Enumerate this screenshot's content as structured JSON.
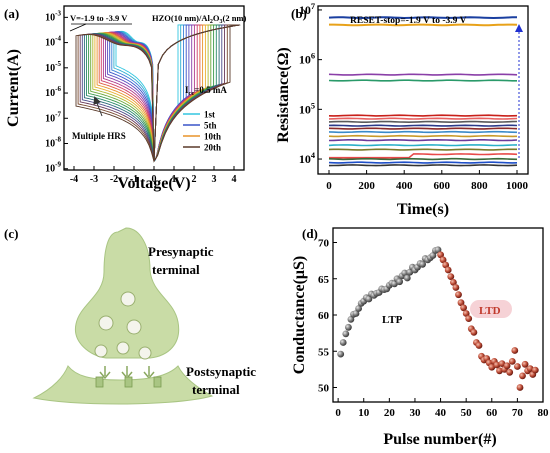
{
  "chart_data": [
    {
      "panel": "(a)",
      "type": "line",
      "xlabel": "Voltage(V)",
      "ylabel": "Current(A)",
      "xlim": [
        -4.5,
        4.5
      ],
      "ylim": [
        1e-09,
        0.001
      ],
      "y_scale": "log",
      "x_ticks": [
        "-4",
        "-3",
        "-2",
        "-1",
        "0",
        "1",
        "2",
        "3",
        "4"
      ],
      "y_ticks": [
        "10-9",
        "10-8",
        "10-7",
        "10-6",
        "10-5",
        "10-4",
        "10-3"
      ],
      "annotations": [
        "V=-1.9 to -3.9 V",
        "HZO(10 nm)/Al2O3(2 nm)",
        "Icc=0.5 mA",
        "Multiple HRS"
      ],
      "compliance_current": 0.0005,
      "reset_stop_voltages": [
        -1.9,
        -3.9
      ],
      "legend": [
        {
          "name": "1st",
          "color": "#33c6e0"
        },
        {
          "name": "5th",
          "color": "#3a55c8"
        },
        {
          "name": "10th",
          "color": "#e8932a"
        },
        {
          "name": "20th",
          "color": "#5a3a2a"
        }
      ],
      "legend_position": "right",
      "num_curves": 20
    },
    {
      "panel": "(b)",
      "type": "line",
      "title": "RESET-stop=-1.9 V to -3.9 V",
      "xlabel": "Time(s)",
      "ylabel": "Resistance(Ω)",
      "xlim": [
        0,
        1000
      ],
      "ylim": [
        5000,
        12000000
      ],
      "y_scale": "log",
      "x_ticks": [
        "0",
        "200",
        "400",
        "600",
        "800",
        "1000"
      ],
      "y_ticks": [
        "104",
        "105",
        "106",
        "107"
      ],
      "levels": [
        7000000,
        5000000,
        500000,
        380000,
        75000,
        65000,
        56000,
        47000,
        41000,
        35000,
        29000,
        24000,
        19000,
        15500,
        12500,
        10000,
        8500,
        7500
      ],
      "level_colors": [
        "#1a3fa0",
        "#e8a21a",
        "#8a3fa8",
        "#2a9a6a",
        "#c8201a",
        "#e86060",
        "#5a5a5a",
        "#2a3a8a",
        "#8a2a2a",
        "#3a8ac8",
        "#c89a2a",
        "#6a3a9a",
        "#2ab0c8",
        "#7a7a2a",
        "#e84a4a",
        "#3a6a3a",
        "#2050c8",
        "#333333"
      ]
    },
    {
      "panel": "(d)",
      "type": "scatter",
      "xlabel": "Pulse number(#)",
      "ylabel": "Conductance(μS)",
      "xlim": [
        -2,
        80
      ],
      "ylim": [
        48,
        72
      ],
      "x_ticks": [
        "0",
        "10",
        "20",
        "30",
        "40",
        "50",
        "60",
        "70",
        "80"
      ],
      "y_ticks": [
        "50",
        "55",
        "60",
        "65",
        "70"
      ],
      "annotations": [
        "LTP",
        "LTD"
      ],
      "series": [
        {
          "name": "LTP",
          "color": "#7d7d7d",
          "x": [
            1,
            2,
            3,
            4,
            5,
            6,
            7,
            8,
            9,
            10,
            11,
            12,
            13,
            14,
            15,
            16,
            17,
            18,
            19,
            20,
            21,
            22,
            23,
            24,
            25,
            26,
            27,
            28,
            29,
            30,
            31,
            32,
            33,
            34,
            35,
            36,
            37,
            38,
            39
          ],
          "values": [
            54.6,
            56.2,
            57.4,
            58.3,
            59.4,
            60.1,
            60.2,
            60.9,
            61.6,
            61.9,
            62.4,
            62.2,
            62.9,
            62.7,
            63.0,
            63.1,
            63.6,
            63.5,
            63.6,
            64.1,
            64.4,
            64.3,
            65.0,
            64.6,
            65.4,
            65.8,
            65.1,
            65.9,
            66.6,
            66.2,
            66.6,
            67.1,
            67.0,
            67.8,
            67.6,
            67.9,
            68.2,
            68.9,
            69.0
          ]
        },
        {
          "name": "LTD",
          "color": "#c0392b",
          "x": [
            40,
            41,
            42,
            43,
            44,
            45,
            46,
            47,
            48,
            49,
            50,
            51,
            52,
            53,
            54,
            55,
            56,
            57,
            58,
            59,
            60,
            61,
            62,
            63,
            64,
            65,
            66,
            67,
            68,
            69,
            70,
            71,
            72,
            73,
            74,
            75,
            76,
            77
          ],
          "values": [
            68.3,
            67.6,
            66.9,
            66.2,
            65.3,
            64.5,
            63.8,
            62.8,
            61.7,
            61.0,
            60.2,
            59.5,
            58.1,
            57.6,
            56.2,
            55.8,
            54.3,
            53.8,
            54.0,
            53.4,
            52.8,
            53.6,
            53.1,
            52.3,
            53.3,
            52.5,
            53.0,
            52.1,
            53.6,
            55.1,
            52.9,
            50.0,
            51.6,
            53.2,
            52.3,
            52.6,
            51.8,
            52.4
          ]
        }
      ]
    }
  ],
  "panel_a": {
    "label": "(a)",
    "xlabel": "Voltage(V)",
    "ylabel": "Current(A)",
    "ann_vrange": "V=-1.9 to -3.9 V",
    "ann_hzo": "HZO(10 nm)/Al",
    "ann_hzo_sub1": "2",
    "ann_hzo_o": "O",
    "ann_hzo_sub2": "3",
    "ann_hzo_tail": "(2 nm)",
    "ann_icc": "I",
    "ann_icc_sub": "cc",
    "ann_icc_tail": "=0.5 mA",
    "ann_hrs": "Multiple HRS",
    "legend": [
      "1st",
      "5th",
      "10th",
      "20th"
    ]
  },
  "panel_b": {
    "label": "(b)",
    "title": "RESET-stop=-1.9 V to -3.9 V",
    "xlabel": "Time(s)",
    "ylabel": "Resistance(Ω)"
  },
  "panel_c": {
    "label": "(c)",
    "pre_line1": "Presynaptic",
    "pre_line2": "terminal",
    "post_line1": "Postsynaptic",
    "post_line2": "terminal"
  },
  "panel_d": {
    "label": "(d)",
    "xlabel": "Pulse number(#)",
    "ylabel": "Conductance(μS)",
    "ltp": "LTP",
    "ltd": "LTD"
  },
  "colors": {
    "synapse_fill": "#c9dca6",
    "synapse_dark": "#a9c583",
    "vesicle": "#f4f4ec",
    "ltd_highlight": "#f6d2d6"
  }
}
